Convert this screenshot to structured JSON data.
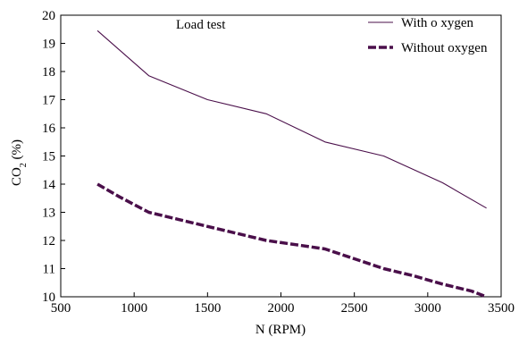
{
  "chart_data": {
    "type": "line",
    "annotation": "Load test",
    "xlabel": "N (RPM)",
    "ylabel_main": "CO",
    "ylabel_sub": "2",
    "ylabel_unit": " (%)",
    "xlim": [
      500,
      3500
    ],
    "ylim": [
      10,
      20
    ],
    "xticks": [
      500,
      1000,
      1500,
      2000,
      2500,
      3000,
      3500
    ],
    "yticks": [
      10,
      11,
      12,
      13,
      14,
      15,
      16,
      17,
      18,
      19,
      20
    ],
    "grid": false,
    "legend_position": "top-right",
    "series": [
      {
        "name": "With o xygen",
        "color": "#4a0f4a",
        "style": "solid",
        "x": [
          750,
          1100,
          1500,
          1900,
          2300,
          2700,
          3100,
          3400
        ],
        "y": [
          19.45,
          17.85,
          17.0,
          16.5,
          15.5,
          15.0,
          14.05,
          13.15
        ]
      },
      {
        "name": "Without oxygen",
        "color": "#4a0f4a",
        "style": "dashed",
        "x": [
          750,
          900,
          1100,
          1300,
          1500,
          1700,
          1900,
          2100,
          2300,
          2500,
          2700,
          2900,
          3100,
          3300,
          3400
        ],
        "y": [
          14.0,
          13.55,
          13.0,
          12.75,
          12.5,
          12.25,
          12.0,
          11.85,
          11.7,
          11.35,
          11.0,
          10.75,
          10.45,
          10.2,
          10.0
        ]
      }
    ]
  }
}
